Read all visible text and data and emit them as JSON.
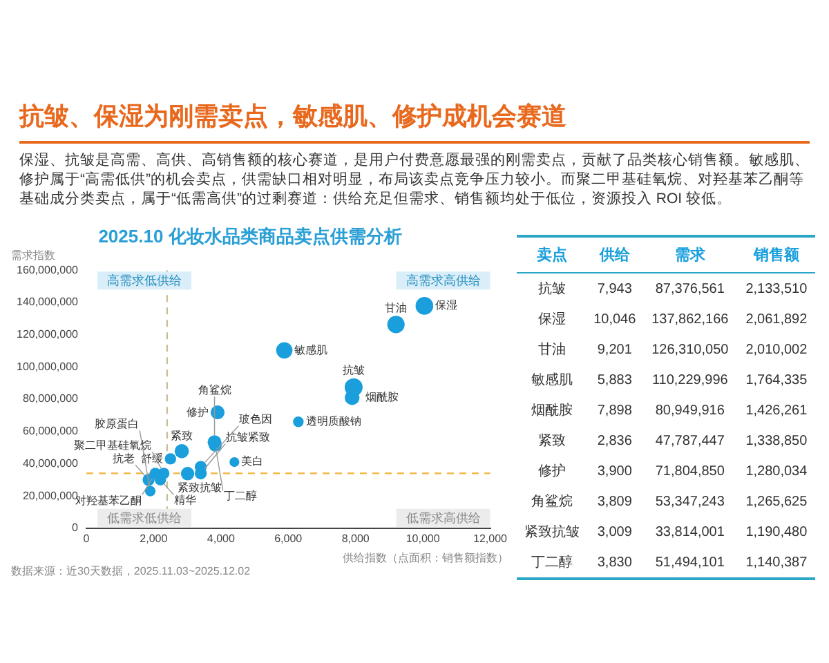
{
  "chart_data": [
    {
      "type": "other",
      "title": "抗皱、保湿为刚需卖点，敏感肌、修护成机会赛道",
      "subtitle": "保湿、抗皱是高需、高供、高销售额的核心赛道，是用户付费意愿最强的刚需卖点，贡献了品类核心销售额。敏感肌、修护属于“高需低供”的机会卖点，供需缺口相对明显，布局该卖点竞争压力较小。而聚二甲基硅氧烷、对羟基苯乙酮等基础成分类卖点，属于“低需高供”的过剩赛道：供给充足但需求、销售额均处于低位，资源投入 ROI 较低。"
    },
    {
      "type": "bubble",
      "title": "2025.10 化妆水品类商品卖点供需分析",
      "xlabel": "供给指数（点面积：销售额指数）",
      "ylabel": "需求指数",
      "xlim": [
        0,
        12000
      ],
      "xticks": [
        0,
        {
          "value": 2000,
          "label": "2,000"
        },
        {
          "value": 4000,
          "label": "4,000"
        },
        {
          "value": 6000,
          "label": "6,000"
        },
        {
          "value": 8000,
          "label": "8,000"
        },
        {
          "value": 10000,
          "label": "10,000"
        },
        {
          "value": 12000,
          "label": "12,000"
        }
      ],
      "ylim": [
        0,
        160000000
      ],
      "yticks": [
        0,
        {
          "value": 20000000,
          "label": "20,000,000"
        },
        {
          "value": 40000000,
          "label": "40,000,000"
        },
        {
          "value": 60000000,
          "label": "60,000,000"
        },
        {
          "value": 80000000,
          "label": "80,000,000"
        },
        {
          "value": 100000000,
          "label": "100,000,000"
        },
        {
          "value": 120000000,
          "label": "120,000,000"
        },
        {
          "value": 140000000,
          "label": "140,000,000"
        },
        {
          "value": 160000000,
          "label": "160,000,000"
        }
      ],
      "grid": false,
      "legend": false,
      "series": [
        {
          "name": "保湿",
          "color": "#1a9fdc",
          "x": [
            10046
          ],
          "values": [
            137862166
          ],
          "sizes": [
            0.97
          ]
        },
        {
          "name": "甘油",
          "color": "#1a9fdc",
          "x": [
            9201
          ],
          "values": [
            126310050
          ],
          "sizes": [
            0.94
          ]
        },
        {
          "name": "敏感肌",
          "color": "#1a9fdc",
          "x": [
            5883
          ],
          "values": [
            110229996
          ],
          "sizes": [
            0.83
          ]
        },
        {
          "name": "抗皱",
          "color": "#1a9fdc",
          "x": [
            7943
          ],
          "values": [
            87376561
          ],
          "sizes": [
            1
          ]
        },
        {
          "name": "烟酰胺",
          "color": "#1a9fdc",
          "x": [
            7898
          ],
          "values": [
            80949916
          ],
          "sizes": [
            0.67
          ]
        },
        {
          "name": "修护",
          "color": "#1a9fdc",
          "x": [
            3900
          ],
          "values": [
            71804850
          ],
          "sizes": [
            0.6
          ]
        },
        {
          "name": "透明质酸钠",
          "color": "#1a9fdc",
          "x": [
            6300
          ],
          "values": [
            66000000
          ],
          "sizes": [
            0.35
          ]
        },
        {
          "name": "角鲨烷",
          "color": "#1a9fdc",
          "x": [
            3809
          ],
          "values": [
            53347243
          ],
          "sizes": [
            0.59
          ]
        },
        {
          "name": "丁二醇",
          "color": "#1a9fdc",
          "x": [
            3830
          ],
          "values": [
            51494101
          ],
          "sizes": [
            0.53
          ]
        },
        {
          "name": "紧致",
          "color": "#1a9fdc",
          "x": [
            2836
          ],
          "values": [
            47787447
          ],
          "sizes": [
            0.63
          ]
        },
        {
          "name": "美白",
          "color": "#1a9fdc",
          "x": [
            4400
          ],
          "values": [
            41000000
          ],
          "sizes": [
            0.3
          ]
        },
        {
          "name": "舒缓",
          "color": "#1a9fdc",
          "x": [
            2500
          ],
          "values": [
            43000000
          ],
          "sizes": [
            0.4
          ]
        },
        {
          "name": "玻色因",
          "color": "#1a9fdc",
          "x": [
            3400
          ],
          "values": [
            38000000
          ],
          "sizes": [
            0.45
          ]
        },
        {
          "name": "抗皱紧致",
          "color": "#1a9fdc",
          "x": [
            3400
          ],
          "values": [
            34000000
          ],
          "sizes": [
            0.45
          ]
        },
        {
          "name": "紧致抗皱",
          "color": "#1a9fdc",
          "x": [
            3009
          ],
          "values": [
            33814001
          ],
          "sizes": [
            0.56
          ]
        },
        {
          "name": "聚二甲基硅氧烷",
          "color": "#1a9fdc",
          "x": [
            2300
          ],
          "values": [
            34000000
          ],
          "sizes": [
            0.4
          ]
        },
        {
          "name": "对羟基苯乙酮",
          "color": "#1a9fdc",
          "x": [
            2050
          ],
          "values": [
            34000000
          ],
          "sizes": [
            0.4
          ]
        },
        {
          "name": "精华",
          "color": "#1a9fdc",
          "x": [
            2200
          ],
          "values": [
            30000000
          ],
          "sizes": [
            0.4
          ]
        },
        {
          "name": "抗老",
          "color": "#1a9fdc",
          "x": [
            1850
          ],
          "values": [
            30000000
          ],
          "sizes": [
            0.45
          ]
        },
        {
          "name": "胶原蛋白",
          "color": "#1a9fdc",
          "x": [
            1900
          ],
          "values": [
            23000000
          ],
          "sizes": [
            0.35
          ]
        }
      ],
      "ref_lines": [
        {
          "axis": "x",
          "value": 2400,
          "color": "#c9bf98",
          "line_style": "dashed"
        },
        {
          "axis": "y",
          "value": 34000000,
          "color": "#f2b43a",
          "line_style": "dashed"
        }
      ],
      "annotations": [
        "高需求低供给",
        "高需求高供给",
        "低需求低供给",
        "低需求高供给",
        "数据来源：近30天数据，2025.11.03~2025.12.02"
      ]
    },
    {
      "type": "other",
      "categories": [
        "卖点",
        "供给",
        "需求",
        "销售额"
      ],
      "y_categories": [
        "抗皱",
        "保湿",
        "甘油",
        "敏感肌",
        "烟酰胺",
        "紧致",
        "修护",
        "角鲨烷",
        "紧致抗皱",
        "丁二醇"
      ],
      "cell_labels": [
        [
          "7,943",
          "87,376,561",
          "2,133,510"
        ],
        [
          "10,046",
          "137,862,166",
          "2,061,892"
        ],
        [
          "9,201",
          "126,310,050",
          "2,010,002"
        ],
        [
          "5,883",
          "110,229,996",
          "1,764,335"
        ],
        [
          "7,898",
          "80,949,916",
          "1,426,261"
        ],
        [
          "2,836",
          "47,787,447",
          "1,338,850"
        ],
        [
          "3,900",
          "71,804,850",
          "1,280,034"
        ],
        [
          "3,809",
          "53,347,243",
          "1,265,625"
        ],
        [
          "3,009",
          "33,814,001",
          "1,190,480"
        ],
        [
          "3,830",
          "51,494,101",
          "1,140,387"
        ]
      ]
    }
  ]
}
